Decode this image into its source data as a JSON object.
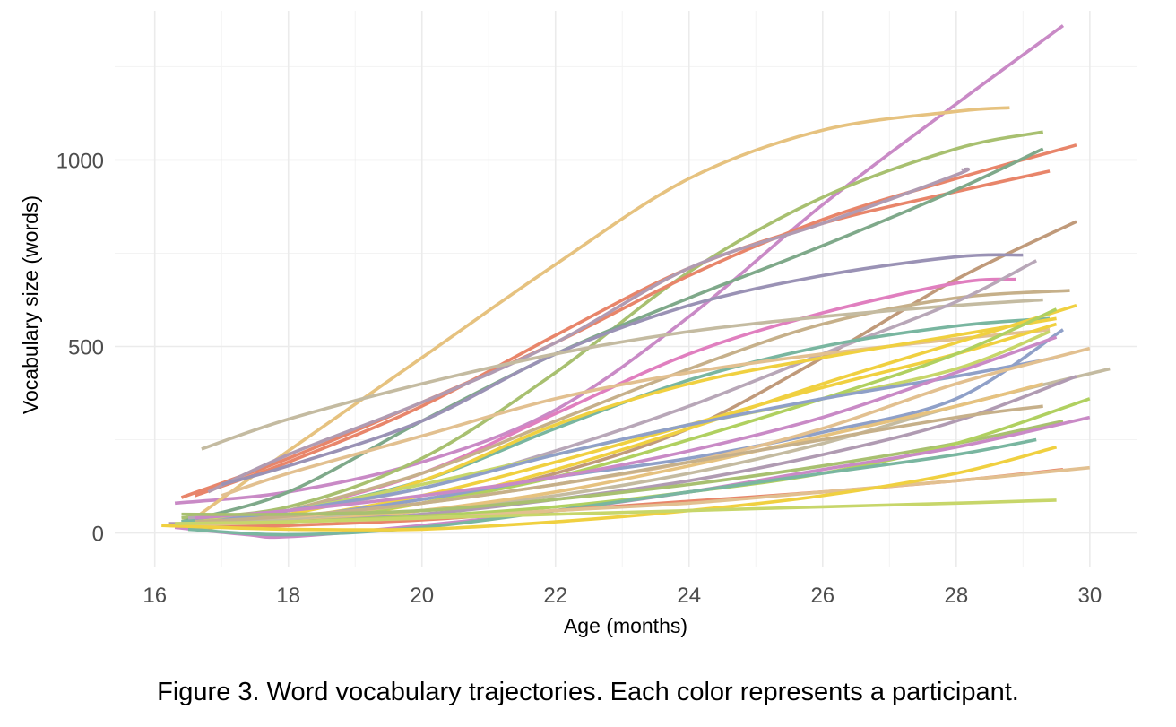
{
  "caption": "Figure 3. Word vocabulary trajectories. Each color represents a participant.",
  "chart_data": {
    "type": "line",
    "title": "",
    "xlabel": "Age (months)",
    "ylabel": "Vocabulary size (words)",
    "xlim": [
      15.4,
      30.7
    ],
    "ylim": [
      -90,
      1400
    ],
    "x_ticks": [
      16,
      18,
      20,
      22,
      24,
      26,
      28,
      30
    ],
    "x_tick_labels": [
      "16",
      "18",
      "20",
      "22",
      "24",
      "26",
      "28",
      "30"
    ],
    "y_ticks": [
      0,
      500,
      1000
    ],
    "y_tick_labels": [
      "0",
      "500",
      "1000"
    ],
    "grid": true,
    "legend": "none",
    "series": [
      {
        "color": "#c98ac6",
        "points": [
          [
            16.3,
            80
          ],
          [
            18,
            110
          ],
          [
            20,
            190
          ],
          [
            22,
            330
          ],
          [
            24,
            580
          ],
          [
            26,
            880
          ],
          [
            28,
            1150
          ],
          [
            29.6,
            1360
          ]
        ]
      },
      {
        "color": "#e6c27f",
        "points": [
          [
            16.6,
            40
          ],
          [
            18,
            220
          ],
          [
            20,
            470
          ],
          [
            22,
            720
          ],
          [
            24,
            950
          ],
          [
            26,
            1080
          ],
          [
            28,
            1130
          ],
          [
            28.8,
            1140
          ]
        ]
      },
      {
        "color": "#a8c070",
        "points": [
          [
            16.4,
            40
          ],
          [
            18,
            70
          ],
          [
            20,
            200
          ],
          [
            22,
            430
          ],
          [
            24,
            700
          ],
          [
            26,
            900
          ],
          [
            28,
            1030
          ],
          [
            29.3,
            1075
          ]
        ]
      },
      {
        "color": "#e8856a",
        "points": [
          [
            16.4,
            95
          ],
          [
            18,
            200
          ],
          [
            20,
            350
          ],
          [
            22,
            510
          ],
          [
            24,
            690
          ],
          [
            26,
            840
          ],
          [
            28,
            950
          ],
          [
            29.8,
            1040
          ]
        ]
      },
      {
        "color": "#e8856a",
        "points": [
          [
            16.6,
            100
          ],
          [
            18,
            190
          ],
          [
            20,
            340
          ],
          [
            22,
            530
          ],
          [
            24,
            710
          ],
          [
            26,
            830
          ],
          [
            28,
            915
          ],
          [
            29.4,
            970
          ]
        ]
      },
      {
        "color": "#7fa98a",
        "points": [
          [
            16.4,
            30
          ],
          [
            18,
            110
          ],
          [
            20,
            300
          ],
          [
            22,
            480
          ],
          [
            24,
            630
          ],
          [
            26,
            770
          ],
          [
            28,
            920
          ],
          [
            29.3,
            1030
          ]
        ]
      },
      {
        "color": "#b09bb2",
        "points": [
          [
            16.8,
            110
          ],
          [
            18,
            210
          ],
          [
            20,
            350
          ],
          [
            22,
            510
          ],
          [
            24,
            710
          ],
          [
            26,
            830
          ],
          [
            28,
            960
          ],
          [
            28.1,
            975
          ]
        ]
      },
      {
        "color": "#c09a7a",
        "points": [
          [
            18,
            40
          ],
          [
            20,
            80
          ],
          [
            22,
            160
          ],
          [
            24,
            280
          ],
          [
            26,
            470
          ],
          [
            28,
            680
          ],
          [
            29.8,
            835
          ]
        ]
      },
      {
        "color": "#9a92b5",
        "points": [
          [
            17,
            130
          ],
          [
            18,
            180
          ],
          [
            20,
            300
          ],
          [
            22,
            480
          ],
          [
            24,
            610
          ],
          [
            26,
            690
          ],
          [
            28,
            740
          ],
          [
            29,
            745
          ]
        ]
      },
      {
        "color": "#e07fbf",
        "points": [
          [
            17,
            30
          ],
          [
            18,
            60
          ],
          [
            20,
            160
          ],
          [
            22,
            320
          ],
          [
            24,
            480
          ],
          [
            26,
            590
          ],
          [
            28,
            670
          ],
          [
            28.9,
            680
          ]
        ]
      },
      {
        "color": "#c6b08a",
        "points": [
          [
            18,
            60
          ],
          [
            20,
            160
          ],
          [
            22,
            300
          ],
          [
            24,
            440
          ],
          [
            26,
            560
          ],
          [
            28,
            630
          ],
          [
            29.7,
            650
          ]
        ]
      },
      {
        "color": "#c4bba1",
        "points": [
          [
            16.7,
            225
          ],
          [
            18,
            305
          ],
          [
            20,
            400
          ],
          [
            22,
            480
          ],
          [
            24,
            540
          ],
          [
            26,
            580
          ],
          [
            28,
            610
          ],
          [
            29.3,
            625
          ]
        ]
      },
      {
        "color": "#b8a7b8",
        "points": [
          [
            16.5,
            40
          ],
          [
            18,
            60
          ],
          [
            20,
            120
          ],
          [
            22,
            220
          ],
          [
            24,
            340
          ],
          [
            26,
            480
          ],
          [
            28,
            620
          ],
          [
            29.2,
            730
          ]
        ]
      },
      {
        "color": "#79b6a0",
        "points": [
          [
            16.4,
            30
          ],
          [
            18,
            60
          ],
          [
            20,
            140
          ],
          [
            22,
            280
          ],
          [
            24,
            410
          ],
          [
            26,
            500
          ],
          [
            28,
            555
          ],
          [
            29.4,
            575
          ]
        ]
      },
      {
        "color": "#e2c090",
        "points": [
          [
            17,
            100
          ],
          [
            18,
            160
          ],
          [
            20,
            260
          ],
          [
            22,
            360
          ],
          [
            24,
            430
          ],
          [
            26,
            480
          ],
          [
            28,
            520
          ],
          [
            29.4,
            545
          ]
        ]
      },
      {
        "color": "#f0d040",
        "points": [
          [
            16.5,
            20
          ],
          [
            18,
            50
          ],
          [
            20,
            140
          ],
          [
            22,
            290
          ],
          [
            24,
            400
          ],
          [
            26,
            470
          ],
          [
            28,
            530
          ],
          [
            29.5,
            575
          ]
        ]
      },
      {
        "color": "#f0d040",
        "points": [
          [
            16.6,
            15
          ],
          [
            18,
            30
          ],
          [
            20,
            80
          ],
          [
            22,
            170
          ],
          [
            24,
            280
          ],
          [
            26,
            400
          ],
          [
            28,
            510
          ],
          [
            29.8,
            610
          ]
        ]
      },
      {
        "color": "#f0d040",
        "points": [
          [
            16.2,
            20
          ],
          [
            18,
            40
          ],
          [
            20,
            100
          ],
          [
            22,
            190
          ],
          [
            24,
            290
          ],
          [
            26,
            390
          ],
          [
            28,
            480
          ],
          [
            29.5,
            560
          ]
        ]
      },
      {
        "color": "#c7d66a",
        "points": [
          [
            16.6,
            30
          ],
          [
            18,
            60
          ],
          [
            20,
            130
          ],
          [
            22,
            210
          ],
          [
            24,
            290
          ],
          [
            26,
            360
          ],
          [
            28,
            440
          ],
          [
            29.4,
            540
          ]
        ]
      },
      {
        "color": "#b0d060",
        "points": [
          [
            16.5,
            10
          ],
          [
            18,
            30
          ],
          [
            20,
            80
          ],
          [
            22,
            150
          ],
          [
            24,
            250
          ],
          [
            26,
            360
          ],
          [
            28,
            480
          ],
          [
            29.5,
            600
          ]
        ]
      },
      {
        "color": "#8fa0c8",
        "points": [
          [
            16.7,
            20
          ],
          [
            18,
            40
          ],
          [
            20,
            90
          ],
          [
            22,
            150
          ],
          [
            24,
            200
          ],
          [
            26,
            270
          ],
          [
            28,
            360
          ],
          [
            29.6,
            545
          ]
        ]
      },
      {
        "color": "#8fa0c8",
        "points": [
          [
            16.8,
            30
          ],
          [
            18,
            60
          ],
          [
            20,
            120
          ],
          [
            22,
            210
          ],
          [
            24,
            290
          ],
          [
            26,
            360
          ],
          [
            28,
            420
          ],
          [
            29.5,
            470
          ]
        ]
      },
      {
        "color": "#c98ac6",
        "points": [
          [
            16.6,
            40
          ],
          [
            18,
            60
          ],
          [
            20,
            100
          ],
          [
            22,
            150
          ],
          [
            24,
            220
          ],
          [
            26,
            310
          ],
          [
            28,
            430
          ],
          [
            29.5,
            525
          ]
        ]
      },
      {
        "color": "#e2c090",
        "points": [
          [
            16.8,
            20
          ],
          [
            18,
            40
          ],
          [
            20,
            80
          ],
          [
            22,
            130
          ],
          [
            24,
            190
          ],
          [
            26,
            280
          ],
          [
            28,
            400
          ],
          [
            30,
            495
          ]
        ]
      },
      {
        "color": "#c4bba1",
        "points": [
          [
            16.5,
            25
          ],
          [
            18,
            35
          ],
          [
            20,
            60
          ],
          [
            22,
            100
          ],
          [
            24,
            160
          ],
          [
            26,
            240
          ],
          [
            28,
            340
          ],
          [
            30.3,
            440
          ]
        ]
      },
      {
        "color": "#e6c27f",
        "points": [
          [
            16.3,
            20
          ],
          [
            18,
            30
          ],
          [
            20,
            60
          ],
          [
            22,
            110
          ],
          [
            24,
            180
          ],
          [
            26,
            260
          ],
          [
            28,
            340
          ],
          [
            29.3,
            400
          ]
        ]
      },
      {
        "color": "#b09bb2",
        "points": [
          [
            16.2,
            25
          ],
          [
            18,
            30
          ],
          [
            20,
            50
          ],
          [
            22,
            90
          ],
          [
            24,
            140
          ],
          [
            26,
            210
          ],
          [
            28,
            300
          ],
          [
            29.8,
            420
          ]
        ]
      },
      {
        "color": "#c6b08a",
        "points": [
          [
            16.6,
            30
          ],
          [
            18,
            45
          ],
          [
            20,
            80
          ],
          [
            22,
            130
          ],
          [
            24,
            190
          ],
          [
            26,
            250
          ],
          [
            28,
            310
          ],
          [
            29.3,
            340
          ]
        ]
      },
      {
        "color": "#a8c070",
        "points": [
          [
            16.4,
            50
          ],
          [
            18,
            50
          ],
          [
            20,
            60
          ],
          [
            22,
            90
          ],
          [
            24,
            130
          ],
          [
            26,
            180
          ],
          [
            28,
            240
          ],
          [
            29.6,
            300
          ]
        ]
      },
      {
        "color": "#b0d060",
        "points": [
          [
            16.5,
            20
          ],
          [
            18,
            30
          ],
          [
            20,
            45
          ],
          [
            22,
            70
          ],
          [
            24,
            110
          ],
          [
            26,
            160
          ],
          [
            28,
            240
          ],
          [
            30,
            360
          ]
        ]
      },
      {
        "color": "#c98ac6",
        "points": [
          [
            16.3,
            15
          ],
          [
            17.4,
            -5
          ],
          [
            18,
            -10
          ],
          [
            20,
            20
          ],
          [
            22,
            60
          ],
          [
            24,
            110
          ],
          [
            26,
            170
          ],
          [
            28,
            230
          ],
          [
            30,
            310
          ]
        ]
      },
      {
        "color": "#79b6a0",
        "points": [
          [
            16.5,
            10
          ],
          [
            18,
            -5
          ],
          [
            20,
            15
          ],
          [
            22,
            60
          ],
          [
            24,
            110
          ],
          [
            26,
            160
          ],
          [
            28,
            210
          ],
          [
            29.2,
            250
          ]
        ]
      },
      {
        "color": "#e8856a",
        "points": [
          [
            16.8,
            15
          ],
          [
            18,
            20
          ],
          [
            20,
            35
          ],
          [
            22,
            60
          ],
          [
            24,
            85
          ],
          [
            26,
            110
          ],
          [
            28,
            140
          ],
          [
            29.6,
            170
          ]
        ]
      },
      {
        "color": "#e2c090",
        "points": [
          [
            16.3,
            20
          ],
          [
            18,
            30
          ],
          [
            20,
            40
          ],
          [
            22,
            60
          ],
          [
            24,
            80
          ],
          [
            26,
            110
          ],
          [
            28,
            140
          ],
          [
            30,
            175
          ]
        ]
      },
      {
        "color": "#f0d040",
        "points": [
          [
            16.1,
            20
          ],
          [
            18,
            10
          ],
          [
            20,
            10
          ],
          [
            22,
            30
          ],
          [
            24,
            60
          ],
          [
            26,
            100
          ],
          [
            28,
            160
          ],
          [
            29.5,
            230
          ]
        ]
      },
      {
        "color": "#c7d66a",
        "points": [
          [
            16.3,
            25
          ],
          [
            18,
            30
          ],
          [
            20,
            40
          ],
          [
            22,
            50
          ],
          [
            24,
            60
          ],
          [
            26,
            70
          ],
          [
            28,
            80
          ],
          [
            29.5,
            88
          ]
        ]
      }
    ]
  }
}
